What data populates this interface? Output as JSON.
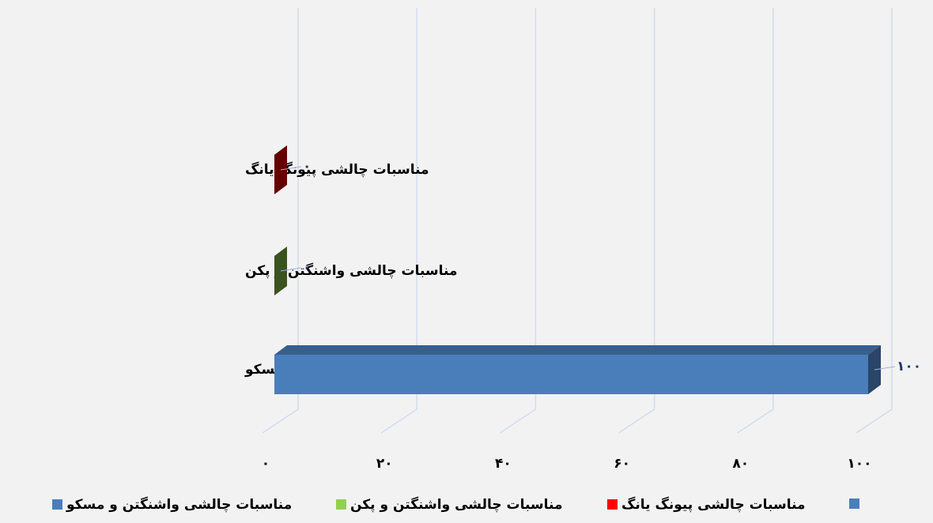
{
  "chart_data": {
    "type": "bar",
    "categories": [
      "مناسبات چالشی پیونگ یانگ",
      "مناسبات چالشی واشنگتن و پکن",
      "مناسبات چالشی  واشنگتن و مسکو"
    ],
    "series": [
      {
        "name": "مناسبات چالشی پیونگ یانگ",
        "color": "#ff0000",
        "values": [
          0,
          null,
          null
        ],
        "value_labels": [
          "۰",
          null,
          null
        ]
      },
      {
        "name": "مناسبات چالشی واشنگتن و پکن",
        "color": "#92d050",
        "values": [
          null,
          0,
          null
        ],
        "value_labels": [
          null,
          "۰",
          null
        ]
      },
      {
        "name": "مناسبات چالشی  واشنگتن و مسکو",
        "color": "#4a7ebb",
        "values": [
          null,
          null,
          100
        ],
        "value_labels": [
          null,
          null,
          "۱۰۰"
        ]
      }
    ],
    "xlim": [
      0,
      100
    ],
    "xticks": [
      {
        "value": 0,
        "label": "۰"
      },
      {
        "value": 20,
        "label": "۲۰"
      },
      {
        "value": 40,
        "label": "۴۰"
      },
      {
        "value": 60,
        "label": "۶۰"
      },
      {
        "value": 80,
        "label": "۸۰"
      },
      {
        "value": 100,
        "label": "۱۰۰"
      }
    ],
    "grid": true
  }
}
